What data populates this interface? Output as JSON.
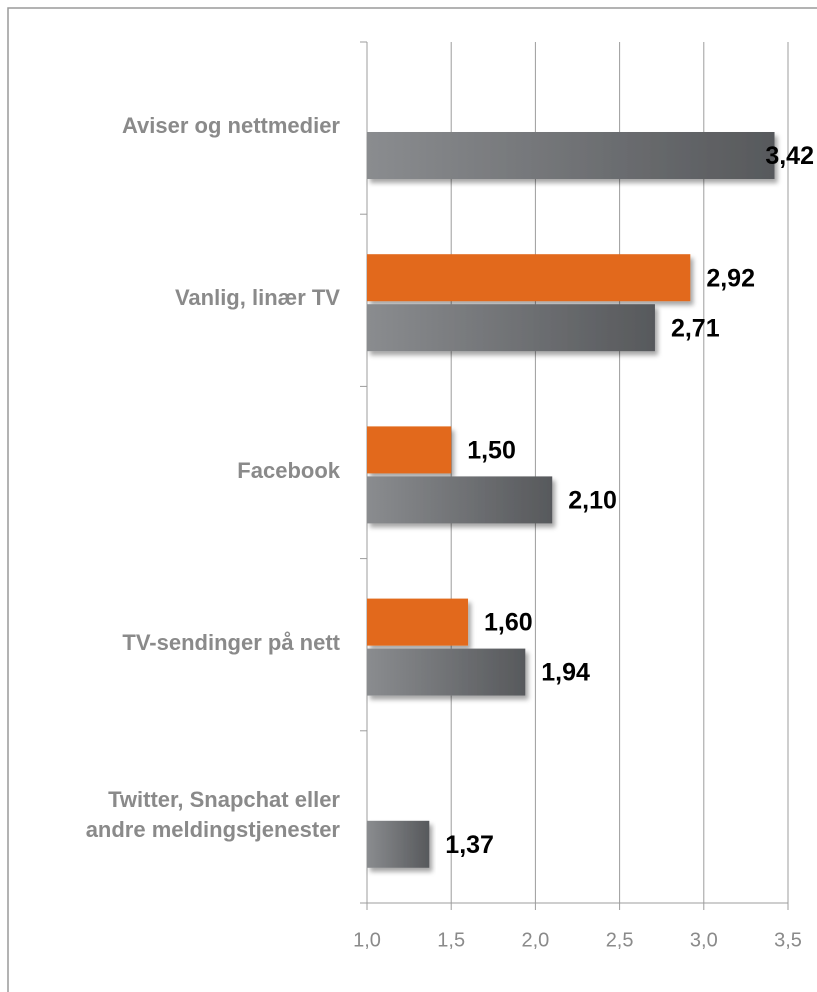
{
  "chart_data": {
    "type": "hbar",
    "categories": [
      "Aviser og nettmedier",
      "Vanlig, linær TV",
      "Facebook",
      "TV-sendinger på nett",
      "Twitter, Snapchat eller\nandre meldingstjenester"
    ],
    "series": [
      {
        "color": "#e2691b",
        "values": [
          null,
          2.92,
          1.5,
          1.6,
          null
        ],
        "value_labels": [
          null,
          "2,92",
          "1,50",
          "1,60",
          null
        ]
      },
      {
        "color": "#6b6d70",
        "values": [
          3.42,
          2.71,
          2.1,
          1.94,
          1.37
        ],
        "value_labels": [
          "3,42",
          "2,71",
          "2,10",
          "1,94",
          "1,37"
        ]
      }
    ],
    "xlim": [
      1.0,
      3.5
    ],
    "xticks": [
      {
        "value": 1.0,
        "label": "1,0"
      },
      {
        "value": 1.5,
        "label": "1,5"
      },
      {
        "value": 2.0,
        "label": "2,0"
      },
      {
        "value": 2.5,
        "label": "2,5"
      },
      {
        "value": 3.0,
        "label": "3,0"
      },
      {
        "value": 3.5,
        "label": "3,5"
      }
    ],
    "grid": true
  }
}
